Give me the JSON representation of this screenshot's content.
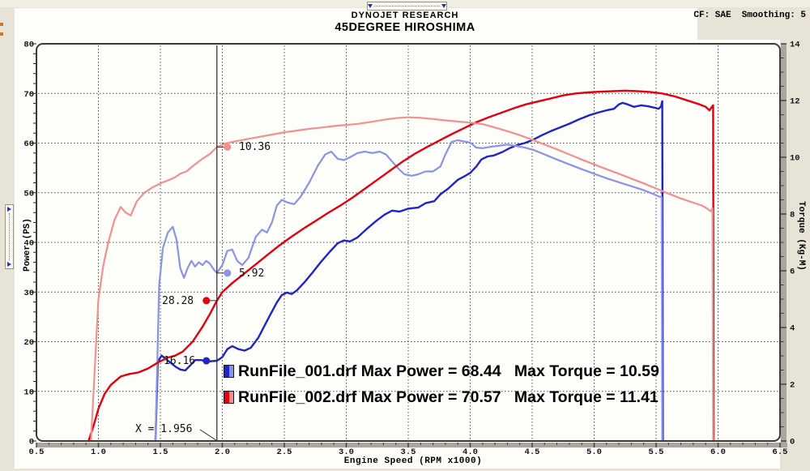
{
  "window": {
    "header_title": "DYNOJET RESEARCH",
    "chart_title": "45DEGREE HIROSHIMA",
    "correction_info": "CF: SAE  Smoothing: 5"
  },
  "chart_data": {
    "type": "line",
    "title": "45DEGREE HIROSHIMA",
    "xlabel": "Engine Speed (RPM x1000)",
    "ylabel_left": "Power (PS)",
    "ylabel_right": "Torque (Kg-M)",
    "x_range": [
      0.5,
      6.5
    ],
    "grid": true,
    "power_axis": {
      "range": [
        0,
        80
      ],
      "ticks": [
        0,
        10,
        20,
        30,
        40,
        50,
        60,
        70,
        80
      ]
    },
    "torque_axis": {
      "range": [
        0,
        14
      ],
      "ticks": [
        0,
        2,
        4,
        6,
        8,
        10,
        12,
        14
      ]
    },
    "x_ticks": [
      "0.5",
      "1.0",
      "1.5",
      "2.0",
      "2.5",
      "3.0",
      "3.5",
      "4.0",
      "4.5",
      "5.0",
      "5.5",
      "6.0",
      "6.5"
    ],
    "cursor": {
      "rpm": 1.956,
      "label": "X = 1.956",
      "readouts": [
        {
          "series": "run2_torque",
          "value": "10.36",
          "side": "right"
        },
        {
          "series": "run1_torque",
          "value": "5.92",
          "side": "right"
        },
        {
          "series": "run2_power",
          "value": "28.28",
          "side": "left"
        },
        {
          "series": "run1_power",
          "value": "16.16",
          "side": "left"
        }
      ]
    },
    "runs": [
      {
        "file": "RunFile_001.drf",
        "max_power": 68.44,
        "max_torque": 10.59,
        "legend_text": "RunFile_001.drf Max Power = 68.44   Max Torque = 10.59",
        "power_color": "#2024c8",
        "torque_color": "#8a93e8"
      },
      {
        "file": "RunFile_002.drf",
        "max_power": 70.57,
        "max_torque": 11.41,
        "legend_text": "RunFile_002.drf Max Power = 70.57   Max Torque = 11.41",
        "power_color": "#e3000f",
        "torque_color": "#f29090"
      }
    ],
    "series": [
      {
        "id": "run1_power",
        "axis": "power",
        "color": "#2024c8",
        "width": 2.4,
        "points": [
          [
            1.46,
            0
          ],
          [
            1.48,
            16
          ],
          [
            1.51,
            17.2
          ],
          [
            1.54,
            16.6
          ],
          [
            1.58,
            15.8
          ],
          [
            1.62,
            15
          ],
          [
            1.66,
            14.4
          ],
          [
            1.7,
            14.2
          ],
          [
            1.74,
            15.2
          ],
          [
            1.78,
            16.3
          ],
          [
            1.83,
            16.3
          ],
          [
            1.88,
            16
          ],
          [
            1.92,
            16.1
          ],
          [
            1.956,
            16.16
          ],
          [
            2.0,
            16.9
          ],
          [
            2.04,
            18.5
          ],
          [
            2.08,
            19.1
          ],
          [
            2.13,
            18.5
          ],
          [
            2.18,
            18.2
          ],
          [
            2.23,
            18.8
          ],
          [
            2.29,
            20.8
          ],
          [
            2.34,
            23.2
          ],
          [
            2.39,
            25.6
          ],
          [
            2.44,
            27.9
          ],
          [
            2.48,
            29.4
          ],
          [
            2.52,
            29.9
          ],
          [
            2.56,
            29.6
          ],
          [
            2.6,
            30.3
          ],
          [
            2.66,
            31.9
          ],
          [
            2.73,
            34
          ],
          [
            2.8,
            36.2
          ],
          [
            2.87,
            38.2
          ],
          [
            2.93,
            39.8
          ],
          [
            2.98,
            40.4
          ],
          [
            3.03,
            40.2
          ],
          [
            3.09,
            41
          ],
          [
            3.16,
            42.6
          ],
          [
            3.24,
            44.3
          ],
          [
            3.31,
            45.6
          ],
          [
            3.37,
            46.4
          ],
          [
            3.43,
            46.2
          ],
          [
            3.5,
            46.8
          ],
          [
            3.58,
            47.0
          ],
          [
            3.64,
            47.9
          ],
          [
            3.71,
            48.3
          ],
          [
            3.76,
            49.7
          ],
          [
            3.82,
            50.8
          ],
          [
            3.9,
            52.6
          ],
          [
            3.96,
            53.4
          ],
          [
            4.0,
            54
          ],
          [
            4.05,
            55.3
          ],
          [
            4.09,
            56.7
          ],
          [
            4.14,
            57.3
          ],
          [
            4.19,
            57.5
          ],
          [
            4.26,
            58.2
          ],
          [
            4.32,
            59
          ],
          [
            4.38,
            59.6
          ],
          [
            4.44,
            60
          ],
          [
            4.51,
            60.7
          ],
          [
            4.58,
            61.6
          ],
          [
            4.65,
            62.4
          ],
          [
            4.72,
            63.1
          ],
          [
            4.8,
            63.9
          ],
          [
            4.88,
            64.8
          ],
          [
            4.96,
            65.6
          ],
          [
            5.04,
            66.2
          ],
          [
            5.1,
            66.6
          ],
          [
            5.16,
            66.9
          ],
          [
            5.2,
            67.8
          ],
          [
            5.23,
            68.1
          ],
          [
            5.27,
            67.8
          ],
          [
            5.32,
            67.3
          ],
          [
            5.38,
            67.6
          ],
          [
            5.44,
            67.4
          ],
          [
            5.49,
            67.1
          ],
          [
            5.52,
            66.9
          ],
          [
            5.54,
            67.4
          ],
          [
            5.55,
            68.44
          ],
          [
            5.555,
            0
          ]
        ]
      },
      {
        "id": "run1_torque",
        "axis": "torque",
        "color": "#8a93e8",
        "width": 2.2,
        "points": [
          [
            1.46,
            0
          ],
          [
            1.49,
            5.5
          ],
          [
            1.52,
            6.8
          ],
          [
            1.56,
            7.35
          ],
          [
            1.6,
            7.55
          ],
          [
            1.63,
            7.1
          ],
          [
            1.66,
            6.1
          ],
          [
            1.69,
            5.75
          ],
          [
            1.72,
            6.1
          ],
          [
            1.75,
            6.35
          ],
          [
            1.78,
            6.15
          ],
          [
            1.81,
            6.3
          ],
          [
            1.84,
            6.2
          ],
          [
            1.87,
            6.35
          ],
          [
            1.9,
            6.25
          ],
          [
            1.93,
            6.05
          ],
          [
            1.956,
            5.92
          ],
          [
            2.0,
            6.2
          ],
          [
            2.04,
            6.7
          ],
          [
            2.08,
            6.75
          ],
          [
            2.12,
            6.35
          ],
          [
            2.16,
            6.2
          ],
          [
            2.21,
            6.45
          ],
          [
            2.27,
            7.2
          ],
          [
            2.32,
            7.45
          ],
          [
            2.36,
            7.35
          ],
          [
            2.4,
            7.7
          ],
          [
            2.44,
            8.3
          ],
          [
            2.48,
            8.5
          ],
          [
            2.53,
            8.4
          ],
          [
            2.58,
            8.35
          ],
          [
            2.63,
            8.6
          ],
          [
            2.7,
            9.1
          ],
          [
            2.77,
            9.7
          ],
          [
            2.83,
            10.1
          ],
          [
            2.88,
            10.2
          ],
          [
            2.93,
            9.95
          ],
          [
            2.98,
            9.9
          ],
          [
            3.03,
            10.0
          ],
          [
            3.09,
            10.15
          ],
          [
            3.15,
            10.2
          ],
          [
            3.21,
            10.15
          ],
          [
            3.27,
            10.2
          ],
          [
            3.32,
            10.1
          ],
          [
            3.37,
            9.85
          ],
          [
            3.42,
            9.6
          ],
          [
            3.47,
            9.4
          ],
          [
            3.53,
            9.35
          ],
          [
            3.58,
            9.4
          ],
          [
            3.64,
            9.5
          ],
          [
            3.7,
            9.5
          ],
          [
            3.76,
            9.68
          ],
          [
            3.8,
            10.1
          ],
          [
            3.85,
            10.54
          ],
          [
            3.9,
            10.6
          ],
          [
            3.95,
            10.56
          ],
          [
            4.0,
            10.52
          ],
          [
            4.05,
            10.34
          ],
          [
            4.1,
            10.32
          ],
          [
            4.15,
            10.36
          ],
          [
            4.22,
            10.4
          ],
          [
            4.3,
            10.45
          ],
          [
            4.37,
            10.4
          ],
          [
            4.44,
            10.34
          ],
          [
            4.51,
            10.26
          ],
          [
            4.6,
            10.1
          ],
          [
            4.7,
            9.92
          ],
          [
            4.8,
            9.75
          ],
          [
            4.9,
            9.58
          ],
          [
            5.0,
            9.42
          ],
          [
            5.1,
            9.26
          ],
          [
            5.2,
            9.12
          ],
          [
            5.3,
            8.98
          ],
          [
            5.4,
            8.84
          ],
          [
            5.47,
            8.72
          ],
          [
            5.52,
            8.62
          ],
          [
            5.545,
            8.6
          ],
          [
            5.55,
            0
          ]
        ]
      },
      {
        "id": "run2_power",
        "axis": "power",
        "color": "#e3000f",
        "width": 2.4,
        "points": [
          [
            0.92,
            0
          ],
          [
            0.96,
            3
          ],
          [
            1.0,
            6.5
          ],
          [
            1.05,
            9.5
          ],
          [
            1.1,
            11.3
          ],
          [
            1.18,
            13
          ],
          [
            1.25,
            13.5
          ],
          [
            1.32,
            13.8
          ],
          [
            1.4,
            14.6
          ],
          [
            1.48,
            15.8
          ],
          [
            1.56,
            16.8
          ],
          [
            1.62,
            17.2
          ],
          [
            1.68,
            18
          ],
          [
            1.76,
            20
          ],
          [
            1.84,
            23
          ],
          [
            1.9,
            25.6
          ],
          [
            1.956,
            28.28
          ],
          [
            2.0,
            30
          ],
          [
            2.08,
            31.8
          ],
          [
            2.16,
            33.4
          ],
          [
            2.25,
            35.2
          ],
          [
            2.35,
            37.2
          ],
          [
            2.45,
            39.2
          ],
          [
            2.55,
            41
          ],
          [
            2.65,
            42.7
          ],
          [
            2.75,
            44.3
          ],
          [
            2.85,
            45.9
          ],
          [
            2.95,
            47.4
          ],
          [
            3.05,
            49
          ],
          [
            3.15,
            50.8
          ],
          [
            3.25,
            52.6
          ],
          [
            3.35,
            54.4
          ],
          [
            3.45,
            56.2
          ],
          [
            3.55,
            57.8
          ],
          [
            3.65,
            59.2
          ],
          [
            3.75,
            60.5
          ],
          [
            3.85,
            61.8
          ],
          [
            3.95,
            63
          ],
          [
            4.05,
            64.2
          ],
          [
            4.15,
            65.2
          ],
          [
            4.25,
            66.1
          ],
          [
            4.35,
            67
          ],
          [
            4.45,
            67.8
          ],
          [
            4.55,
            68.4
          ],
          [
            4.65,
            69
          ],
          [
            4.75,
            69.6
          ],
          [
            4.85,
            70
          ],
          [
            4.95,
            70.2
          ],
          [
            5.05,
            70.35
          ],
          [
            5.15,
            70.45
          ],
          [
            5.25,
            70.57
          ],
          [
            5.35,
            70.45
          ],
          [
            5.45,
            70.3
          ],
          [
            5.55,
            70
          ],
          [
            5.65,
            69.4
          ],
          [
            5.75,
            68.6
          ],
          [
            5.85,
            67.8
          ],
          [
            5.9,
            67.3
          ],
          [
            5.93,
            66.6
          ],
          [
            5.96,
            67.6
          ],
          [
            5.965,
            0
          ]
        ]
      },
      {
        "id": "run2_torque",
        "axis": "torque",
        "color": "#f29090",
        "width": 2.2,
        "points": [
          [
            0.94,
            0
          ],
          [
            0.97,
            2.5
          ],
          [
            1.0,
            5
          ],
          [
            1.04,
            6.2
          ],
          [
            1.08,
            7
          ],
          [
            1.13,
            7.8
          ],
          [
            1.18,
            8.25
          ],
          [
            1.22,
            8.05
          ],
          [
            1.26,
            7.95
          ],
          [
            1.31,
            8.45
          ],
          [
            1.37,
            8.75
          ],
          [
            1.44,
            8.95
          ],
          [
            1.51,
            9.1
          ],
          [
            1.57,
            9.2
          ],
          [
            1.62,
            9.3
          ],
          [
            1.66,
            9.42
          ],
          [
            1.71,
            9.5
          ],
          [
            1.77,
            9.72
          ],
          [
            1.84,
            9.95
          ],
          [
            1.9,
            10.12
          ],
          [
            1.956,
            10.36
          ],
          [
            2.02,
            10.48
          ],
          [
            2.1,
            10.56
          ],
          [
            2.2,
            10.64
          ],
          [
            2.3,
            10.72
          ],
          [
            2.4,
            10.8
          ],
          [
            2.5,
            10.88
          ],
          [
            2.6,
            10.94
          ],
          [
            2.7,
            11.0
          ],
          [
            2.8,
            11.05
          ],
          [
            2.9,
            11.1
          ],
          [
            3.0,
            11.14
          ],
          [
            3.1,
            11.18
          ],
          [
            3.2,
            11.25
          ],
          [
            3.3,
            11.32
          ],
          [
            3.4,
            11.38
          ],
          [
            3.5,
            11.41
          ],
          [
            3.6,
            11.39
          ],
          [
            3.7,
            11.35
          ],
          [
            3.8,
            11.3
          ],
          [
            3.9,
            11.26
          ],
          [
            4.0,
            11.22
          ],
          [
            4.1,
            11.17
          ],
          [
            4.2,
            11.05
          ],
          [
            4.3,
            10.92
          ],
          [
            4.4,
            10.78
          ],
          [
            4.5,
            10.62
          ],
          [
            4.6,
            10.45
          ],
          [
            4.7,
            10.28
          ],
          [
            4.8,
            10.1
          ],
          [
            4.9,
            9.92
          ],
          [
            5.0,
            9.75
          ],
          [
            5.1,
            9.58
          ],
          [
            5.2,
            9.42
          ],
          [
            5.3,
            9.25
          ],
          [
            5.4,
            9.08
          ],
          [
            5.5,
            8.9
          ],
          [
            5.6,
            8.72
          ],
          [
            5.7,
            8.55
          ],
          [
            5.8,
            8.4
          ],
          [
            5.87,
            8.3
          ],
          [
            5.91,
            8.2
          ],
          [
            5.94,
            8.1
          ],
          [
            5.955,
            8.2
          ],
          [
            5.96,
            0
          ]
        ]
      }
    ]
  }
}
